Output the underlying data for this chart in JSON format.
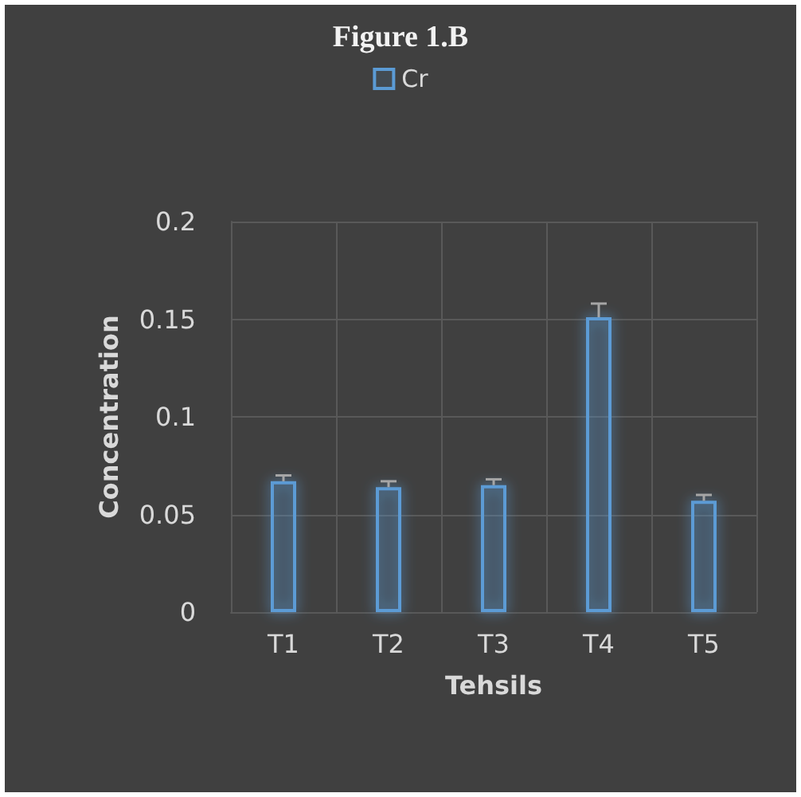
{
  "chart_data": {
    "type": "bar",
    "title": "Figure 1.B",
    "xlabel": "Tehsils",
    "ylabel": "Concentration",
    "categories": [
      "T1",
      "T2",
      "T3",
      "T4",
      "T5"
    ],
    "series": [
      {
        "name": "Cr",
        "color": "#5b9bd5",
        "values": [
          0.067,
          0.064,
          0.065,
          0.151,
          0.057
        ],
        "errors": [
          0.003,
          0.003,
          0.003,
          0.007,
          0.003
        ]
      }
    ],
    "ylim": [
      0,
      0.2
    ],
    "yticks": [
      0,
      0.05,
      0.1,
      0.15,
      0.2
    ],
    "grid": true,
    "legend": "top"
  }
}
